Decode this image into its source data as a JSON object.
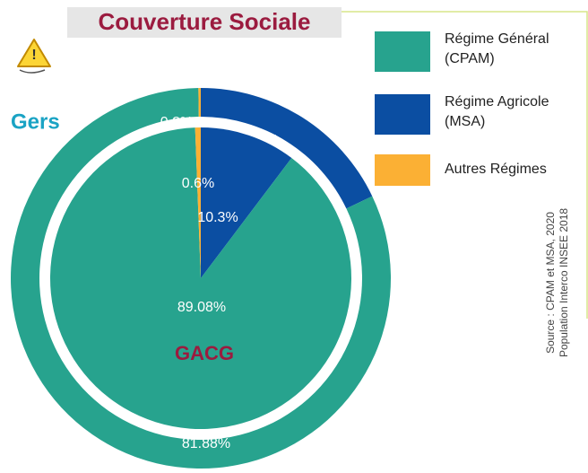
{
  "chart_data": {
    "type": "pie",
    "title": "Couverture Sociale",
    "categories": [
      "Régime Général (CPAM)",
      "Régime Agricole (MSA)",
      "Autres Régimes"
    ],
    "colors": [
      "#27a38e",
      "#0b4ea2",
      "#fbb034"
    ],
    "rings": [
      {
        "name": "Gers",
        "values": [
          81.88,
          17.9,
          0.2
        ],
        "value_labels": [
          "81.88%",
          "17.9%",
          "0.2%"
        ]
      },
      {
        "name": "GACG",
        "values": [
          89.08,
          10.3,
          0.6
        ],
        "value_labels": [
          "89.08%",
          "10.3%",
          "0.6%"
        ]
      }
    ],
    "source": "Source : CPAM et MSA, 2020",
    "source_note": "Population Interco INSEE 2018"
  }
}
